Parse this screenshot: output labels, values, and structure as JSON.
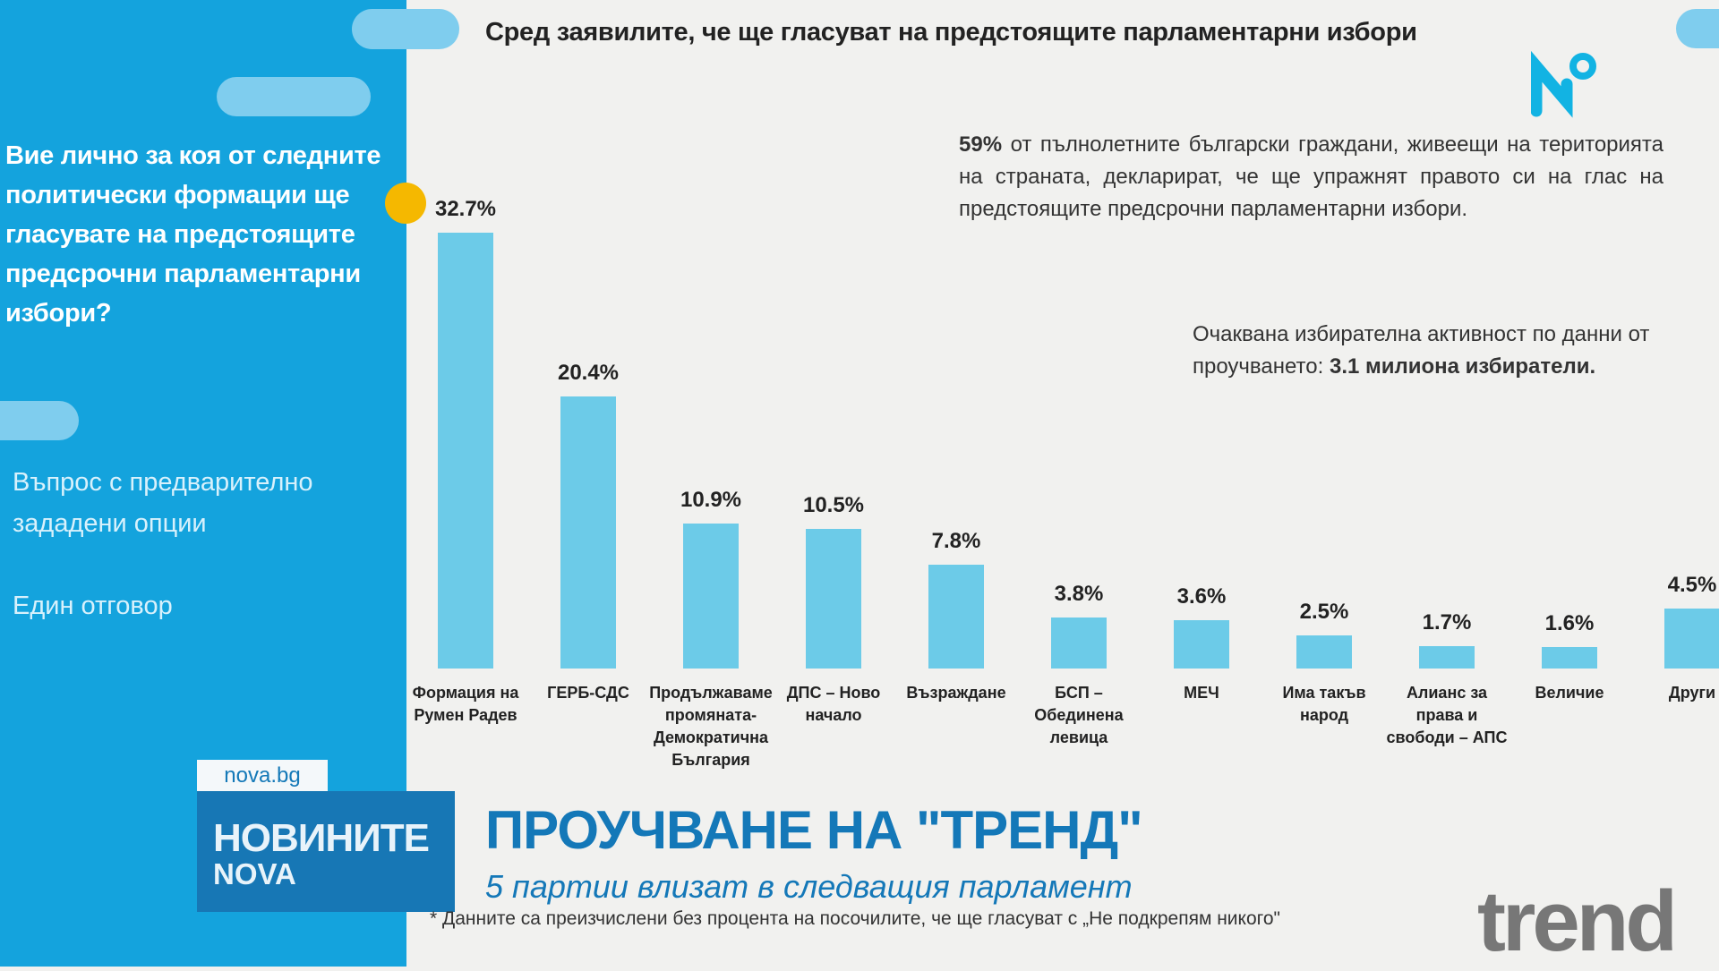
{
  "header": {
    "title": "Сред заявилите, че ще гласуват на предстоящите парламентарни избори"
  },
  "sidebar": {
    "question": "Вие лично за коя от следните политически формации ще гласувате на предстоящите предсрочни парламентарни избори?",
    "question_type": "Въпрос с предварително зададени опции",
    "answer_type": "Един отговор"
  },
  "notes": {
    "participation_bold": "59%",
    "participation_text": " от пълнолетните български граждани, живеещи на територията на страната, декларират, че ще упражнят правото си на глас на предстоящите предсрочни парламентарни избори.",
    "turnout_text": "Очаквана избирателна активност по данни от проучването: ",
    "turnout_bold": "3.1 милиона избиратели.",
    "footnote": "* Данните са преизчислени без процента на посочилите, че ще гласуват с „Не подкрепям никого\""
  },
  "chart_data": {
    "type": "bar",
    "title": "Сред заявилите, че ще гласуват на предстоящите парламентарни избори",
    "categories": [
      "Формация на Румен Радев",
      "ГЕРБ-СДС",
      "Продължаваме промяната-Демократична България",
      "ДПС – Ново начало",
      "Възраждане",
      "БСП – Обединена левица",
      "МЕЧ",
      "Има такъв народ",
      "Алианс за права и свободи – АПС",
      "Величие",
      "Други"
    ],
    "values": [
      32.7,
      20.4,
      10.9,
      10.5,
      7.8,
      3.8,
      3.6,
      2.5,
      1.7,
      1.6,
      4.5
    ],
    "labels": [
      "32.7%",
      "20.4%",
      "10.9%",
      "10.5%",
      "7.8%",
      "3.8%",
      "3.6%",
      "2.5%",
      "1.7%",
      "1.6%",
      "4.5%"
    ],
    "ylim": [
      0,
      33
    ],
    "grid": false,
    "bar_color": "#6ccbe8"
  },
  "banner": {
    "site": "nova.bg",
    "brand_line1": "НОВИНИТЕ",
    "brand_line2": "NOVA",
    "headline": "ПРОУЧВАНЕ НА \"ТРЕНД\"",
    "subheadline": "5 партии влизат в следващия парламент"
  },
  "logos": {
    "trend": "trend",
    "channel": "nova-logo"
  },
  "colors": {
    "panel": "#14a3dd",
    "accent": "#1478b8",
    "highlight": "#f5b800"
  }
}
